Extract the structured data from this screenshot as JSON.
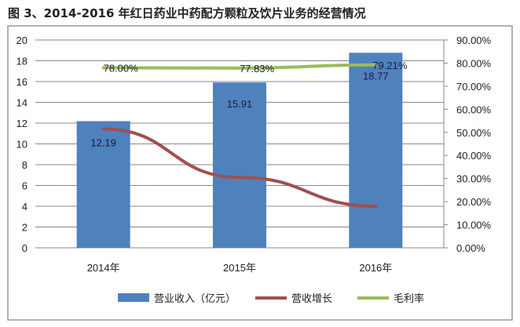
{
  "chart_data": {
    "type": "bar+line",
    "title": "图 3、2014-2016 年红日药业中药配方颗粒及饮片业务的经营情况",
    "categories": [
      "2014年",
      "2015年",
      "2016年"
    ],
    "left_axis": {
      "ylim": [
        0,
        20
      ],
      "ticks": [
        "0",
        "2",
        "4",
        "6",
        "8",
        "10",
        "12",
        "14",
        "16",
        "18",
        "20"
      ]
    },
    "right_axis": {
      "ylim": [
        0,
        90
      ],
      "ticks": [
        "0.00%",
        "10.00%",
        "20.00%",
        "30.00%",
        "40.00%",
        "50.00%",
        "60.00%",
        "70.00%",
        "80.00%",
        "90.00%"
      ]
    },
    "grid": true,
    "legend_position": "bottom",
    "series": [
      {
        "name": "营业收入（亿元）",
        "type": "bar",
        "axis": "left",
        "values": [
          12.19,
          15.91,
          18.77
        ],
        "labels": [
          "12.19",
          "15.91",
          "18.77"
        ],
        "color": "#4f81bd"
      },
      {
        "name": "营收增长",
        "type": "line",
        "axis": "right",
        "values": [
          51.5,
          30.5,
          18.0
        ],
        "color": "#a0504e"
      },
      {
        "name": "毛利率",
        "type": "line",
        "axis": "right",
        "values": [
          78.0,
          77.83,
          79.21
        ],
        "labels": [
          "78.00%",
          "77.83%",
          "79.21%"
        ],
        "color": "#9bbb59"
      }
    ]
  }
}
